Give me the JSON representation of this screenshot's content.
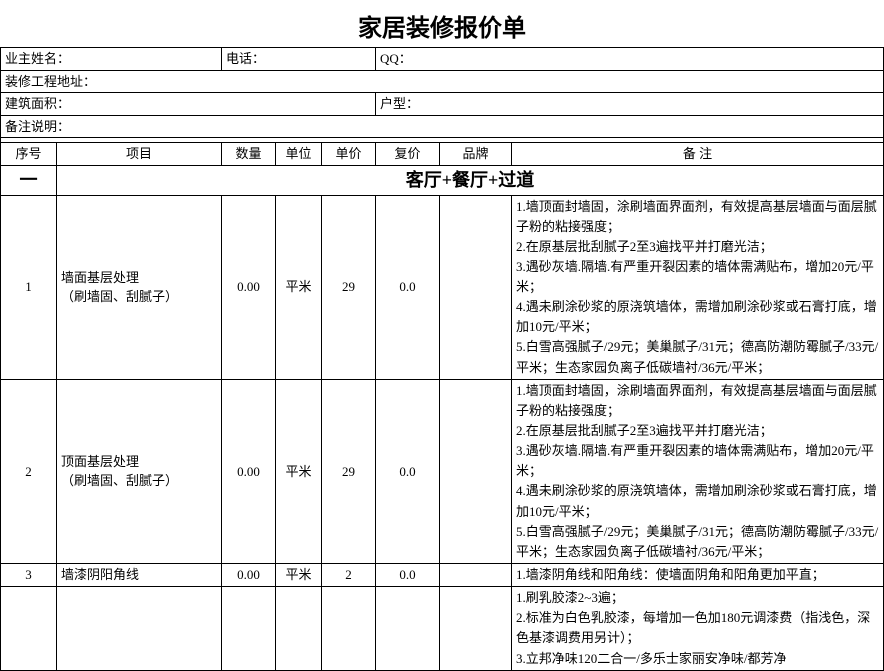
{
  "title": "家居装修报价单",
  "info_labels": {
    "owner": "业主姓名：",
    "phone": "电话：",
    "qq": "QQ：",
    "project_addr": "装修工程地址：",
    "area": "建筑面积：",
    "house_type": "户型：",
    "remark": "备注说明："
  },
  "columns": {
    "seq": "序号",
    "item": "项目",
    "qty": "数量",
    "unit": "单位",
    "unit_price": "单价",
    "total_price": "复价",
    "brand": "品牌",
    "notes": "备    注"
  },
  "section": {
    "seq_label": "一",
    "title": "客厅+餐厅+过道"
  },
  "rows": [
    {
      "seq": "1",
      "item": "墙面基层处理\n（刷墙固、刮腻子）",
      "qty": "0.00",
      "unit": "平米",
      "unit_price": "29",
      "total_price": "0.0",
      "brand": "",
      "notes": "1.墙顶面封墙固，涂刷墙面界面剂，有效提高基层墙面与面层腻子粉的粘接强度；\n2.在原基层批刮腻子2至3遍找平并打磨光洁；\n3.遇砂灰墙.隔墙.有严重开裂因素的墙体需满贴布，增加20元/平米；\n4.遇未刷涂砂浆的原浇筑墙体，需增加刷涂砂浆或石膏打底，增加10元/平米；\n5.白雪高强腻子/29元；美巢腻子/31元；德高防潮防霉腻子/33元/平米；生态家园负离子低碳墙衬/36元/平米；"
    },
    {
      "seq": "2",
      "item": "顶面基层处理\n（刷墙固、刮腻子）",
      "qty": "0.00",
      "unit": "平米",
      "unit_price": "29",
      "total_price": "0.0",
      "brand": "",
      "notes": "1.墙顶面封墙固，涂刷墙面界面剂，有效提高基层墙面与面层腻子粉的粘接强度；\n2.在原基层批刮腻子2至3遍找平并打磨光洁；\n3.遇砂灰墙.隔墙.有严重开裂因素的墙体需满贴布，增加20元/平米；\n4.遇未刷涂砂浆的原浇筑墙体，需增加刷涂砂浆或石膏打底，增加10元/平米；\n5.白雪高强腻子/29元；美巢腻子/31元；德高防潮防霉腻子/33元/平米；生态家园负离子低碳墙衬/36元/平米；"
    },
    {
      "seq": "3",
      "item": "墙漆阴阳角线",
      "qty": "0.00",
      "unit": "平米",
      "unit_price": "2",
      "total_price": "0.0",
      "brand": "",
      "notes": "1.墙漆阴角线和阳角线：使墙面阴角和阳角更加平直；"
    },
    {
      "seq": "",
      "item": "",
      "qty": "",
      "unit": "",
      "unit_price": "",
      "total_price": "",
      "brand": "",
      "notes": "1.刷乳胶漆2~3遍；\n2.标准为白色乳胶漆，每增加一色加180元调漆费（指浅色，深色基漆调费用另计）；\n3.立邦净味120二合一/多乐士家丽安净味/都芳净"
    }
  ],
  "col_widths": {
    "seq": "56px",
    "item": "165px",
    "qty": "54px",
    "unit": "46px",
    "unit_price": "54px",
    "total_price": "64px",
    "brand": "72px",
    "notes": "auto"
  }
}
